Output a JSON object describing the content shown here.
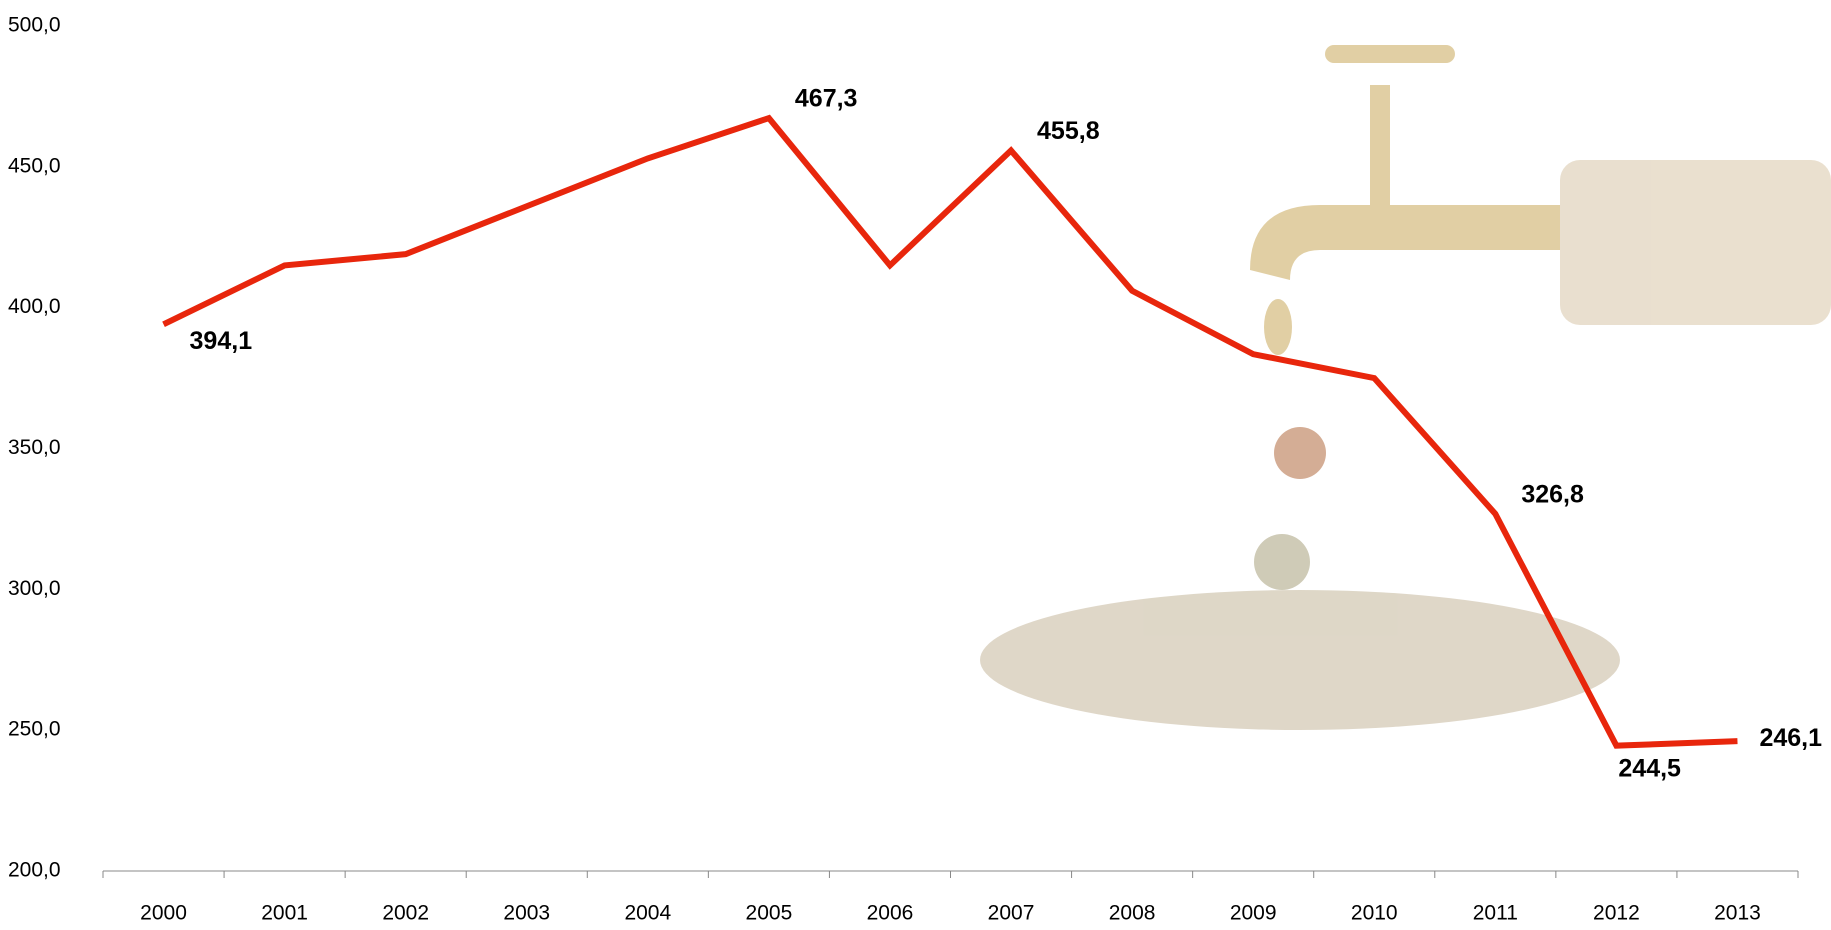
{
  "chart_data": {
    "type": "line",
    "categories": [
      "2000",
      "2001",
      "2002",
      "2003",
      "2004",
      "2005",
      "2006",
      "2007",
      "2008",
      "2009",
      "2010",
      "2011",
      "2012",
      "2013"
    ],
    "series": [
      {
        "color": "#e8260c",
        "values": [
          394.1,
          415,
          419,
          436,
          453,
          467.3,
          415,
          455.8,
          406,
          383.5,
          375,
          326.8,
          244.5,
          246.1
        ],
        "value_labels": [
          "394,1",
          null,
          null,
          null,
          null,
          "467,3",
          null,
          "455,8",
          null,
          null,
          null,
          "326,8",
          "244,5",
          "246,1"
        ]
      }
    ],
    "ylim": [
      200,
      500
    ],
    "yticks": [
      {
        "value": 200,
        "label": "200,0"
      },
      {
        "value": 250,
        "label": "250,0"
      },
      {
        "value": 300,
        "label": "300,0"
      },
      {
        "value": 350,
        "label": "350,0"
      },
      {
        "value": 400,
        "label": "400,0"
      },
      {
        "value": 450,
        "label": "450,0"
      },
      {
        "value": 500,
        "label": "500,0"
      }
    ],
    "grid": false
  }
}
